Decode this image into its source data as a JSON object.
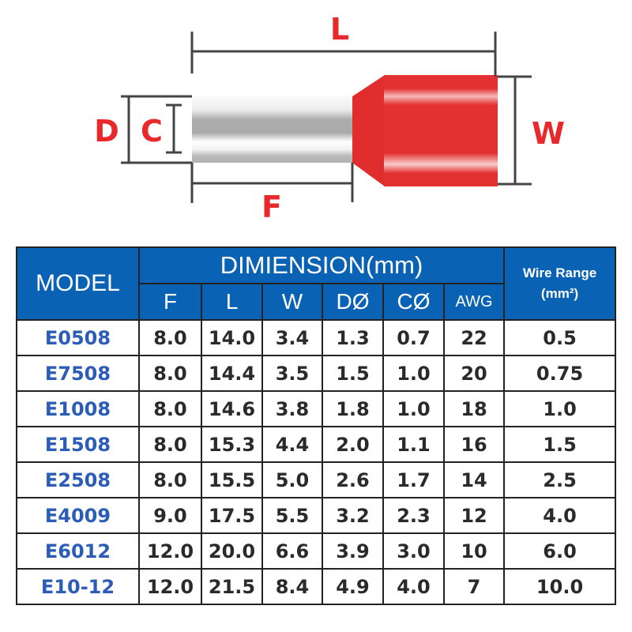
{
  "diagram": {
    "labels": {
      "L": "L",
      "D": "D",
      "C": "C",
      "W": "W",
      "F": "F"
    },
    "colors": {
      "label": "#e8282b",
      "insulation": "#e33030",
      "tube": "#b0b0b0",
      "lines": "#444444"
    }
  },
  "table": {
    "header": {
      "model": "MODEL",
      "dimension": "DIMIENSION(mm)",
      "wire_range_line1": "Wire Range",
      "wire_range_line2": "(mm²)",
      "columns": [
        "F",
        "L",
        "W",
        "DØ",
        "CØ",
        "AWG"
      ]
    },
    "rows": [
      {
        "model": "E0508",
        "values": [
          "8.0",
          "14.0",
          "3.4",
          "1.3",
          "0.7",
          "22",
          "0.5"
        ]
      },
      {
        "model": "E7508",
        "values": [
          "8.0",
          "14.4",
          "3.5",
          "1.5",
          "1.0",
          "20",
          "0.75"
        ]
      },
      {
        "model": "E1008",
        "values": [
          "8.0",
          "14.6",
          "3.8",
          "1.8",
          "1.0",
          "18",
          "1.0"
        ]
      },
      {
        "model": "E1508",
        "values": [
          "8.0",
          "15.3",
          "4.4",
          "2.0",
          "1.1",
          "16",
          "1.5"
        ]
      },
      {
        "model": "E2508",
        "values": [
          "8.0",
          "15.5",
          "5.0",
          "2.6",
          "1.7",
          "14",
          "2.5"
        ]
      },
      {
        "model": "E4009",
        "values": [
          "9.0",
          "17.5",
          "5.5",
          "3.2",
          "2.3",
          "12",
          "4.0"
        ]
      },
      {
        "model": "E6012",
        "values": [
          "12.0",
          "20.0",
          "6.6",
          "3.9",
          "3.0",
          "10",
          "6.0"
        ]
      },
      {
        "model": "E10-12",
        "values": [
          "12.0",
          "21.5",
          "8.4",
          "4.9",
          "4.0",
          "7",
          "10.0"
        ]
      }
    ],
    "colors": {
      "header_bg": "#0a62b4",
      "model_text": "#2b5cb8"
    }
  }
}
